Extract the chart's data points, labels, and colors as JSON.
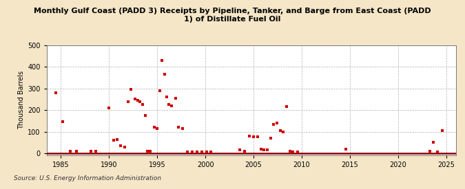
{
  "title": "Monthly Gulf Coast (PADD 3) Receipts by Pipeline, Tanker, and Barge from East Coast (PADD\n1) of Distillate Fuel Oil",
  "ylabel": "Thousand Barrels",
  "source": "Source: U.S. Energy Information Administration",
  "background_color": "#f5e6c8",
  "plot_background": "#ffffff",
  "marker_color": "#cc0000",
  "xlim": [
    1983.5,
    2026
  ],
  "ylim": [
    -8,
    500
  ],
  "yticks": [
    0,
    100,
    200,
    300,
    400,
    500
  ],
  "xticks": [
    1985,
    1990,
    1995,
    2000,
    2005,
    2010,
    2015,
    2020,
    2025
  ],
  "data_x": [
    1984.5,
    1985.2,
    1986.0,
    1986.6,
    1988.1,
    1988.6,
    1990.0,
    1990.5,
    1990.8,
    1991.2,
    1991.6,
    1992.0,
    1992.3,
    1992.7,
    1993.0,
    1993.2,
    1993.5,
    1993.8,
    1994.0,
    1994.3,
    1994.7,
    1995.0,
    1995.3,
    1995.5,
    1995.75,
    1995.95,
    1996.2,
    1996.5,
    1996.9,
    1997.2,
    1997.6,
    1998.1,
    1998.6,
    1999.1,
    1999.6,
    2000.1,
    2000.6,
    2003.6,
    2004.1,
    2004.6,
    2005.0,
    2005.4,
    2005.8,
    2006.1,
    2006.4,
    2006.8,
    2007.1,
    2007.4,
    2007.8,
    2008.1,
    2008.4,
    2008.8,
    2009.1,
    2009.6,
    2014.6,
    2023.3,
    2023.7,
    2024.1,
    2024.6
  ],
  "data_y": [
    280,
    145,
    8,
    8,
    8,
    8,
    210,
    60,
    65,
    35,
    30,
    240,
    295,
    250,
    245,
    240,
    225,
    175,
    10,
    10,
    120,
    115,
    290,
    430,
    365,
    260,
    225,
    220,
    255,
    120,
    115,
    5,
    5,
    5,
    5,
    5,
    5,
    15,
    10,
    80,
    75,
    75,
    20,
    15,
    15,
    70,
    135,
    140,
    105,
    100,
    215,
    10,
    5,
    5,
    20,
    10,
    50,
    5,
    105
  ]
}
